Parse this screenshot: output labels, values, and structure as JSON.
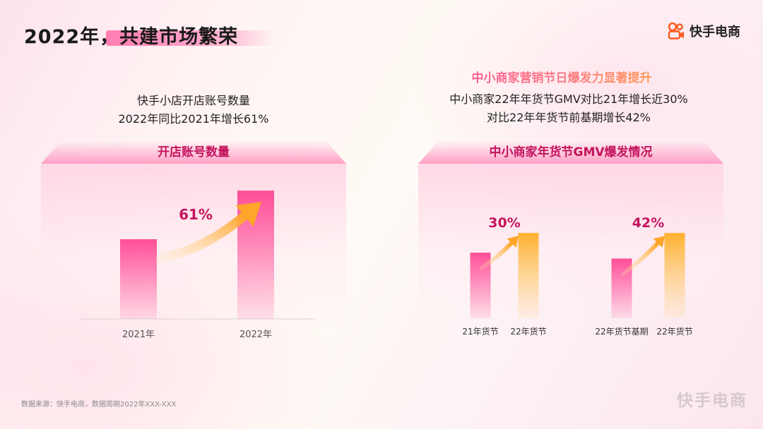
{
  "header": {
    "title": "2022年，共建市场繁荣",
    "brand": "快手电商",
    "brand_icon": "kuaishou-camera-icon"
  },
  "left": {
    "subtext_lines": [
      "快手小店开店账号数量",
      "2022年同比2021年增长61%"
    ],
    "panel_title": "开店账号数量"
  },
  "right": {
    "highlight": "中小商家营销节日爆发力显著提升",
    "subtext_lines": [
      "中小商家22年年货节GMV对比21年增长近30%",
      "对比22年年货节前基期增长42%"
    ],
    "panel_title": "中小商家年货节GMV爆发情况"
  },
  "footnote": "数据来源：快手电商，数据周期2022年XXX-XXX",
  "watermark": "快手电商",
  "colors": {
    "pink": "#ff5aa0",
    "orange": "#ffb83d",
    "accent_text": "#c4145e"
  },
  "chart_data": [
    {
      "type": "bar",
      "title": "开店账号数量",
      "categories": [
        "2021年",
        "2022年"
      ],
      "values": [
        1.0,
        1.61
      ],
      "annotation": "61%",
      "ylim": [
        0,
        1.7
      ],
      "grid": false
    },
    {
      "type": "bar",
      "title": "中小商家年货节GMV爆发情况",
      "categories": [
        "21年货节",
        "22年货节",
        "22年货节基期",
        "22年货节"
      ],
      "values": [
        1.0,
        1.3,
        0.91,
        1.3
      ],
      "annotations": [
        {
          "label": "30%",
          "from": 0,
          "to": 1
        },
        {
          "label": "42%",
          "from": 2,
          "to": 3
        }
      ],
      "bar_colors": [
        "pink",
        "orange",
        "pink",
        "orange"
      ],
      "ylim": [
        0,
        1.42
      ],
      "grid": false
    }
  ]
}
